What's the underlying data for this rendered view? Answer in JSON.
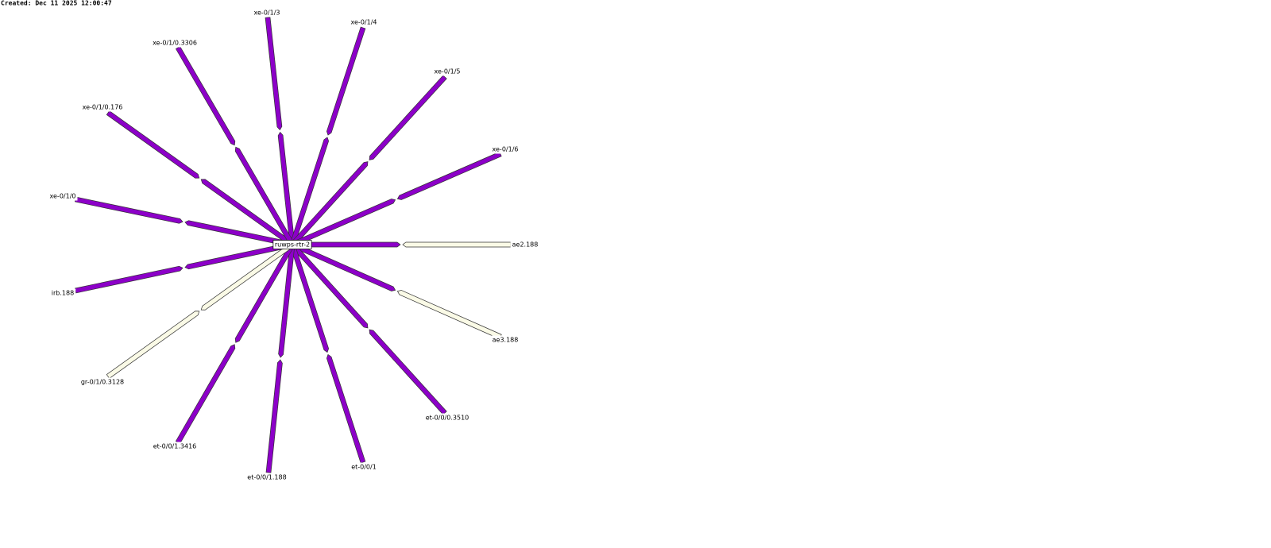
{
  "header": {
    "created": "Created: Dec 11 2025 12:00:47"
  },
  "center": {
    "label": "ruwps-rtr-2"
  },
  "links": [
    {
      "label": "xe-0/1/3",
      "colors": [
        "#8c00c8",
        "#8c00c8"
      ]
    },
    {
      "label": "xe-0/1/4",
      "colors": [
        "#8c00c8",
        "#8c00c8"
      ]
    },
    {
      "label": "xe-0/1/5",
      "colors": [
        "#8c00c8",
        "#8c00c8"
      ]
    },
    {
      "label": "xe-0/1/6",
      "colors": [
        "#8c00c8",
        "#8c00c8"
      ]
    },
    {
      "label": "ae2.188",
      "colors": [
        "#8c00c8",
        "#fafae6"
      ]
    },
    {
      "label": "ae3.188",
      "colors": [
        "#8c00c8",
        "#fafae6"
      ]
    },
    {
      "label": "et-0/0/0.3510",
      "colors": [
        "#8c00c8",
        "#8c00c8"
      ]
    },
    {
      "label": "et-0/0/1",
      "colors": [
        "#8c00c8",
        "#8c00c8"
      ]
    },
    {
      "label": "et-0/0/1.188",
      "colors": [
        "#8c00c8",
        "#8c00c8"
      ]
    },
    {
      "label": "et-0/0/1.3416",
      "colors": [
        "#8c00c8",
        "#8c00c8"
      ]
    },
    {
      "label": "gr-0/1/0.3128",
      "colors": [
        "#fafae6",
        "#fafae6"
      ]
    },
    {
      "label": "irb.188",
      "colors": [
        "#8c00c8",
        "#8c00c8"
      ]
    },
    {
      "label": "xe-0/1/0",
      "colors": [
        "#8c00c8",
        "#8c00c8"
      ]
    },
    {
      "label": "xe-0/1/0.176",
      "colors": [
        "#8c00c8",
        "#8c00c8"
      ]
    },
    {
      "label": "xe-0/1/0.3306",
      "colors": [
        "#8c00c8",
        "#8c00c8"
      ]
    }
  ]
}
